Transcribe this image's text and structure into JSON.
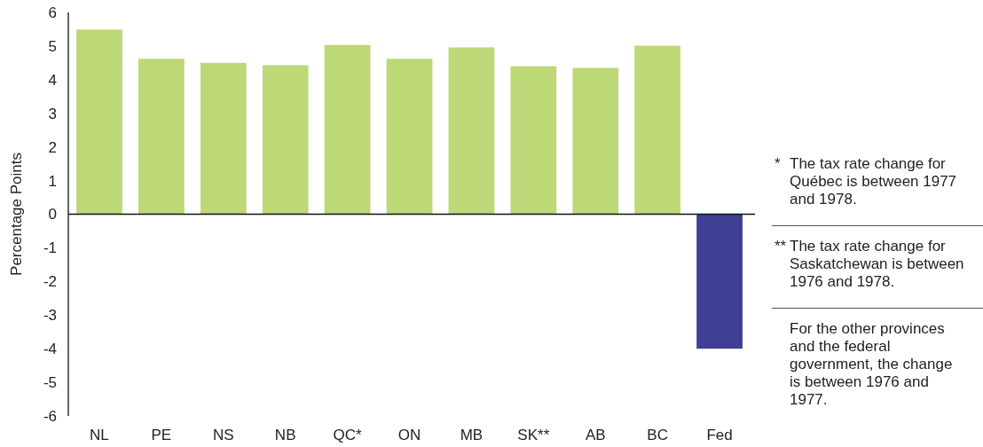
{
  "chart_data": {
    "type": "bar",
    "ylabel": "Percentage Points",
    "categories": [
      "NL",
      "PE",
      "NS",
      "NB",
      "QC*",
      "ON",
      "MB",
      "SK**",
      "AB",
      "BC",
      "Fed"
    ],
    "values": [
      5.49,
      4.62,
      4.5,
      4.43,
      5.03,
      4.62,
      4.96,
      4.4,
      4.35,
      5.01,
      -4.0
    ],
    "colors": [
      "#bcd877",
      "#bcd877",
      "#bcd877",
      "#bcd877",
      "#bcd877",
      "#bcd877",
      "#bcd877",
      "#bcd877",
      "#bcd877",
      "#bcd877",
      "#403f96"
    ],
    "ylim": [
      -6,
      6
    ],
    "yticks": [
      -6,
      -5,
      -4,
      -3,
      -2,
      -1,
      0,
      1,
      2,
      3,
      4,
      5,
      6
    ],
    "annotations": [
      "* The tax rate change for Québec is between 1977 and 1978.",
      "** The tax rate change for Saskatchewan is between 1976 and 1978.",
      "For the other provinces and the federal government, the change is between 1976 and 1977."
    ]
  }
}
